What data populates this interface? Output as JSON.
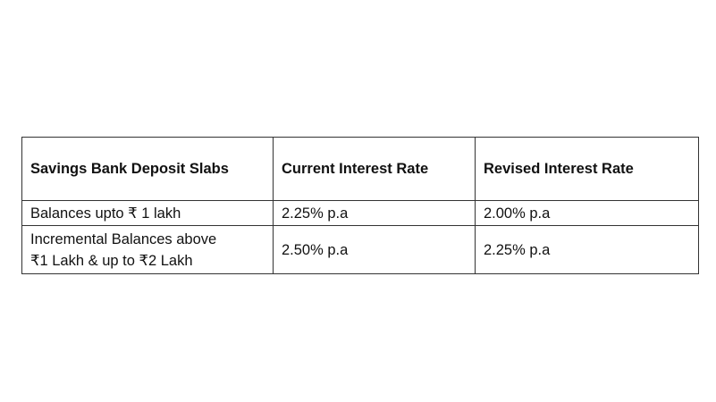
{
  "table": {
    "header": [
      "Savings Bank Deposit Slabs",
      "Current Interest Rate",
      "Revised Interest Rate"
    ],
    "rows": [
      [
        [
          "Balances upto ₹ 1 lakh"
        ],
        [
          "2.25% p.a"
        ],
        [
          "2.00% p.a"
        ]
      ],
      [
        [
          "Incremental Balances above",
          "₹1 Lakh & up to ₹2 Lakh"
        ],
        [
          "2.50% p.a"
        ],
        [
          "2.25% p.a"
        ]
      ]
    ]
  }
}
